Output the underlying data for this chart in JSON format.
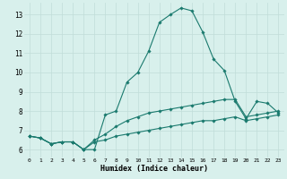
{
  "xlabel": "Humidex (Indice chaleur)",
  "bg_color": "#d8f0ec",
  "grid_color": "#c0ddd8",
  "line_color": "#1a7a6e",
  "xlim": [
    -0.5,
    23.5
  ],
  "ylim": [
    5.6,
    13.6
  ],
  "yticks": [
    6,
    7,
    8,
    9,
    10,
    11,
    12,
    13
  ],
  "xticks": [
    0,
    1,
    2,
    3,
    4,
    5,
    6,
    7,
    8,
    9,
    10,
    11,
    12,
    13,
    14,
    15,
    16,
    17,
    18,
    19,
    20,
    21,
    22,
    23
  ],
  "series": [
    {
      "x": [
        0,
        1,
        2,
        3,
        4,
        5,
        6,
        7,
        8,
        9,
        10,
        11,
        12,
        13,
        14,
        15,
        16,
        17,
        18,
        19,
        20,
        21,
        22,
        23
      ],
      "y": [
        6.7,
        6.6,
        6.3,
        6.4,
        6.4,
        6.0,
        6.0,
        7.8,
        8.0,
        9.5,
        10.0,
        11.1,
        12.6,
        13.0,
        13.35,
        13.2,
        12.1,
        10.7,
        10.1,
        8.5,
        7.6,
        8.5,
        8.4,
        7.9
      ]
    },
    {
      "x": [
        0,
        1,
        2,
        3,
        4,
        5,
        6,
        7,
        8,
        9,
        10,
        11,
        12,
        13,
        14,
        15,
        16,
        17,
        18,
        19,
        20,
        21,
        22,
        23
      ],
      "y": [
        6.7,
        6.6,
        6.3,
        6.4,
        6.4,
        6.0,
        6.5,
        6.8,
        7.2,
        7.5,
        7.7,
        7.9,
        8.0,
        8.1,
        8.2,
        8.3,
        8.4,
        8.5,
        8.6,
        8.6,
        7.7,
        7.8,
        7.9,
        8.0
      ]
    },
    {
      "x": [
        0,
        1,
        2,
        3,
        4,
        5,
        6,
        7,
        8,
        9,
        10,
        11,
        12,
        13,
        14,
        15,
        16,
        17,
        18,
        19,
        20,
        21,
        22,
        23
      ],
      "y": [
        6.7,
        6.6,
        6.3,
        6.4,
        6.4,
        6.0,
        6.4,
        6.5,
        6.7,
        6.8,
        6.9,
        7.0,
        7.1,
        7.2,
        7.3,
        7.4,
        7.5,
        7.5,
        7.6,
        7.7,
        7.5,
        7.6,
        7.7,
        7.8
      ]
    }
  ]
}
